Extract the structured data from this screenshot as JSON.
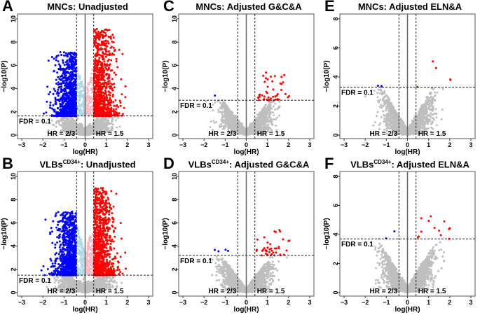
{
  "chart_data": [
    {
      "panel": "A",
      "title": "MNCs: Unadjusted",
      "type": "scatter",
      "xlabel": "log(HR)",
      "ylabel": "−log10(P)",
      "xlim": [
        -3.2,
        3.2
      ],
      "ylim": [
        0,
        10
      ],
      "xticks": [
        -3,
        -2,
        -1,
        0,
        1,
        2,
        3
      ],
      "yticks": [
        0,
        2,
        4,
        6,
        8,
        10
      ],
      "fdr_line": 1.65,
      "fdr_label": "FDR = 0.1",
      "hr_low": -0.405,
      "hr_high": 0.405,
      "hr_low_label": "HR = 2/3",
      "hr_high_label": "HR = 1.5",
      "style": "full"
    },
    {
      "panel": "B",
      "title": "VLBs",
      "title_sup": "CD34+",
      "title_rest": ": Unadjusted",
      "type": "scatter",
      "xlabel": "log(HR)",
      "ylabel": "−log10(P)",
      "xlim": [
        -3.2,
        3.2
      ],
      "ylim": [
        0,
        10
      ],
      "xticks": [
        -3,
        -2,
        -1,
        0,
        1,
        2,
        3
      ],
      "yticks": [
        0,
        2,
        4,
        6,
        8,
        10
      ],
      "fdr_line": 1.5,
      "fdr_label": "FDR = 0.1",
      "hr_low": -0.405,
      "hr_high": 0.405,
      "hr_low_label": "HR = 2/3",
      "hr_high_label": "HR = 1.5",
      "style": "full"
    },
    {
      "panel": "C",
      "title": "MNCs: Adjusted G&C&A",
      "type": "scatter",
      "xlabel": "log(HR)",
      "ylabel": "−log10(P)",
      "xlim": [
        -3.2,
        3.2
      ],
      "ylim": [
        0,
        10
      ],
      "xticks": [
        -3,
        -2,
        -1,
        0,
        1,
        2,
        3
      ],
      "yticks": [
        0,
        2,
        4,
        6,
        8,
        10
      ],
      "fdr_line": 3.0,
      "fdr_label": "FDR = 0.1",
      "hr_low": -0.405,
      "hr_high": 0.405,
      "hr_low_label": "HR = 2/3",
      "hr_high_label": "HR = 1.5",
      "style": "adjusted"
    },
    {
      "panel": "D",
      "title": "VLBs",
      "title_sup": "CD34+",
      "title_rest": ": Adjusted G&C&A",
      "type": "scatter",
      "xlabel": "log(HR)",
      "ylabel": "−log10(P)",
      "xlim": [
        -3.2,
        3.2
      ],
      "ylim": [
        0,
        10
      ],
      "xticks": [
        -3,
        -2,
        -1,
        0,
        1,
        2,
        3
      ],
      "yticks": [
        0,
        2,
        4,
        6,
        8,
        10
      ],
      "fdr_line": 3.2,
      "fdr_label": "FDR = 0.1",
      "hr_low": -0.405,
      "hr_high": 0.405,
      "hr_low_label": "HR = 2/3",
      "hr_high_label": "HR = 1.5",
      "style": "adjusted"
    },
    {
      "panel": "E",
      "title": "MNCs: Adjusted ELN&A",
      "type": "scatter",
      "xlabel": "log(HR)",
      "ylabel": "−log10(P)",
      "xlim": [
        -3.2,
        3.2
      ],
      "ylim": [
        0,
        8
      ],
      "xticks": [
        -3,
        -2,
        -1,
        0,
        1,
        2,
        3
      ],
      "yticks": [
        0,
        2,
        4,
        6,
        8
      ],
      "fdr_line": 3.3,
      "fdr_label": "FDR = 0.1",
      "hr_low": -0.405,
      "hr_high": 0.405,
      "hr_low_label": "HR = 2/3",
      "hr_high_label": "HR = 1.5",
      "style": "sparse"
    },
    {
      "panel": "F",
      "title": "VLBs",
      "title_sup": "CD34+",
      "title_rest": ": Adjusted ELN&A",
      "type": "scatter",
      "xlabel": "log(HR)",
      "ylabel": "−log10(P)",
      "xlim": [
        -3.2,
        3.2
      ],
      "ylim": [
        0,
        8
      ],
      "xticks": [
        -3,
        -2,
        -1,
        0,
        1,
        2,
        3
      ],
      "yticks": [
        0,
        2,
        4,
        6,
        8
      ],
      "fdr_line": 3.7,
      "fdr_label": "FDR = 0.1",
      "hr_low": -0.405,
      "hr_high": 0.405,
      "hr_low_label": "HR = 2/3",
      "hr_high_label": "HR = 1.5",
      "style": "sparse"
    }
  ],
  "colors": {
    "up": "#ff0000",
    "down": "#0000ff",
    "up_weak": "#ffb6c1",
    "down_weak": "#add8e6",
    "ns": "#bebebe"
  }
}
